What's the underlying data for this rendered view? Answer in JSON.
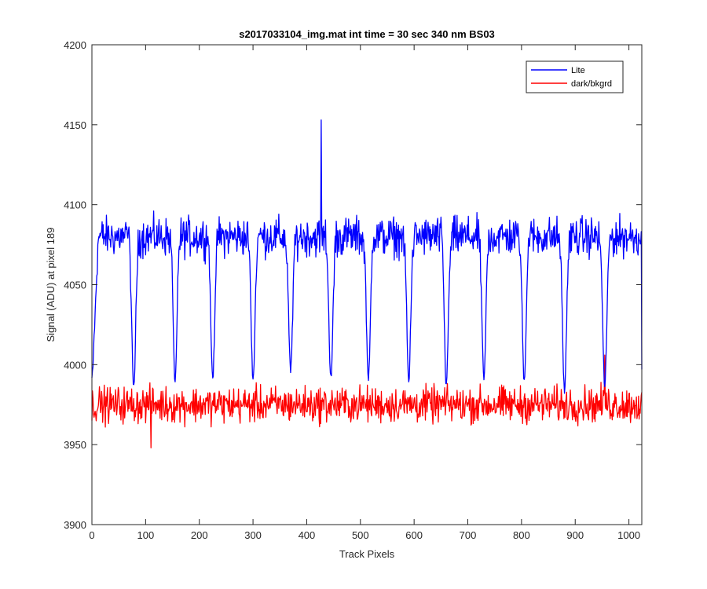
{
  "chart_data": {
    "type": "line",
    "title": "s2017033104_img.mat int time = 30 sec  340 nm BS03",
    "xlabel": "Track Pixels",
    "ylabel": "Signal (ADU) at pixel 189",
    "xlim": [
      0,
      1024
    ],
    "ylim": [
      3900,
      4200
    ],
    "xticks": [
      0,
      100,
      200,
      300,
      400,
      500,
      600,
      700,
      800,
      900,
      1000
    ],
    "yticks": [
      3900,
      3950,
      4000,
      4050,
      4100,
      4150,
      4200
    ],
    "grid": false,
    "legend_position": "top-right",
    "series": [
      {
        "name": "Lite",
        "color": "#0000ff",
        "plateau_level": 4080,
        "noise_amplitude": 12,
        "peak": {
          "x": 427,
          "y": 4153
        },
        "dips": [
          {
            "x": 78,
            "y": 3985
          },
          {
            "x": 155,
            "y": 3990
          },
          {
            "x": 225,
            "y": 3992
          },
          {
            "x": 300,
            "y": 3990
          },
          {
            "x": 370,
            "y": 3995
          },
          {
            "x": 445,
            "y": 3990
          },
          {
            "x": 515,
            "y": 3990
          },
          {
            "x": 590,
            "y": 3990
          },
          {
            "x": 660,
            "y": 3987
          },
          {
            "x": 730,
            "y": 3990
          },
          {
            "x": 805,
            "y": 3990
          },
          {
            "x": 880,
            "y": 3983
          },
          {
            "x": 955,
            "y": 3985
          }
        ],
        "start": {
          "x": 0,
          "y": 3985
        },
        "end": {
          "x": 1024,
          "y": 3997
        }
      },
      {
        "name": "dark/bkgrd",
        "color": "#ff0000",
        "mean_level": 3975,
        "noise_amplitude": 10,
        "min": {
          "x": 110,
          "y": 3948
        },
        "max": {
          "x": 955,
          "y": 4006
        }
      }
    ]
  }
}
